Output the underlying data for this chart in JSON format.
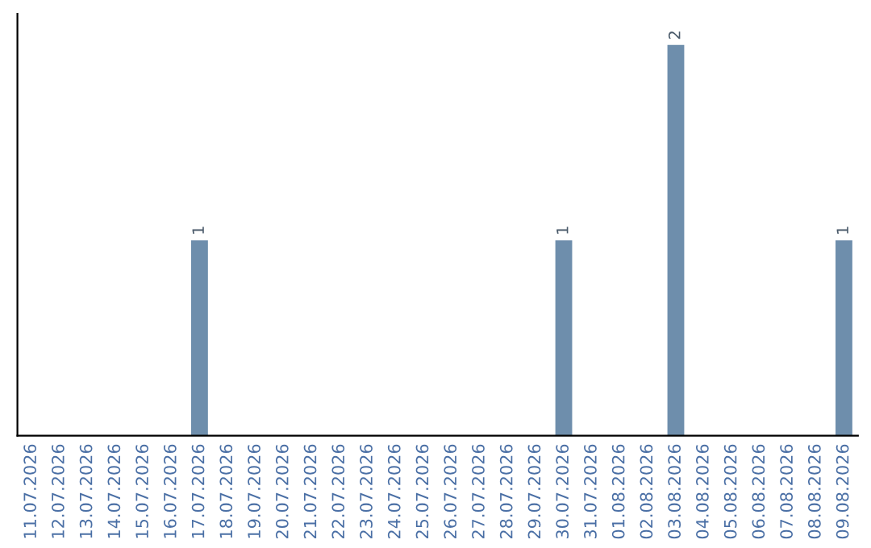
{
  "chart_data": {
    "type": "bar",
    "categories": [
      "11.07.2026",
      "12.07.2026",
      "13.07.2026",
      "14.07.2026",
      "15.07.2026",
      "16.07.2026",
      "17.07.2026",
      "18.07.2026",
      "19.07.2026",
      "20.07.2026",
      "21.07.2026",
      "22.07.2026",
      "23.07.2026",
      "24.07.2026",
      "25.07.2026",
      "26.07.2026",
      "27.07.2026",
      "28.07.2026",
      "29.07.2026",
      "30.07.2026",
      "31.07.2026",
      "01.08.2026",
      "02.08.2026",
      "03.08.2026",
      "04.08.2026",
      "05.08.2026",
      "06.08.2026",
      "07.08.2026",
      "08.08.2026",
      "09.08.2026"
    ],
    "values": [
      0,
      0,
      0,
      0,
      0,
      0,
      1,
      0,
      0,
      0,
      0,
      0,
      0,
      0,
      0,
      0,
      0,
      0,
      0,
      1,
      0,
      0,
      0,
      2,
      0,
      0,
      0,
      0,
      0,
      1
    ],
    "color": "#6e8eac",
    "value_labels": [
      null,
      null,
      null,
      null,
      null,
      null,
      "1",
      null,
      null,
      null,
      null,
      null,
      null,
      null,
      null,
      null,
      null,
      null,
      null,
      "1",
      null,
      null,
      null,
      "2",
      null,
      null,
      null,
      null,
      null,
      "1"
    ],
    "grid": false,
    "legend": false,
    "tick_labels": "x"
  }
}
